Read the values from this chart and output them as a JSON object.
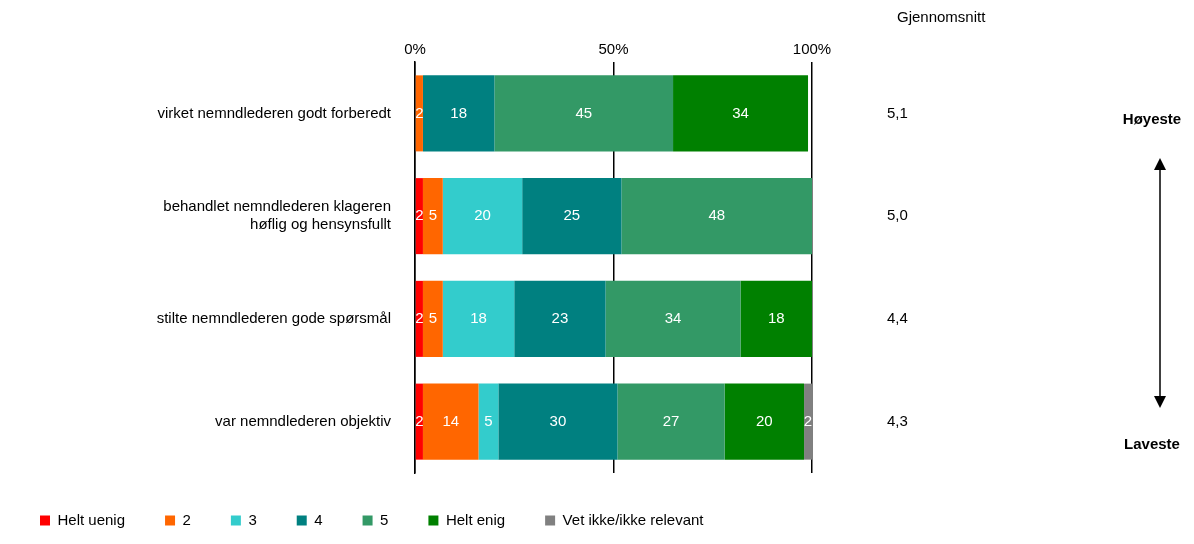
{
  "chart_data": {
    "type": "bar",
    "orientation": "horizontal",
    "stacked": true,
    "categories": [
      "virket nemndlederen godt forberedt",
      "behandlet nemndlederen klageren høflig og hensynsfullt",
      "stilte nemndlederen gode spørsmål",
      "var nemndlederen objektiv"
    ],
    "series": [
      {
        "name": "Helt uenig",
        "color": "#ff0000",
        "values": [
          null,
          2,
          2,
          2
        ]
      },
      {
        "name": "2",
        "color": "#ff6600",
        "values": [
          2,
          5,
          5,
          14
        ]
      },
      {
        "name": "3",
        "color": "#33cccc",
        "values": [
          null,
          20,
          18,
          5
        ]
      },
      {
        "name": "4",
        "color": "#008080",
        "values": [
          18,
          25,
          23,
          30
        ]
      },
      {
        "name": "5",
        "color": "#339966",
        "values": [
          45,
          48,
          34,
          27
        ]
      },
      {
        "name": "Helt enig",
        "color": "#008000",
        "values": [
          34,
          null,
          18,
          20
        ]
      },
      {
        "name": "Vet ikke/ikke relevant",
        "color": "#808080",
        "values": [
          null,
          null,
          null,
          2
        ]
      }
    ],
    "xlim": [
      0,
      100
    ],
    "xticks": [
      {
        "value": 0,
        "label": "0%"
      },
      {
        "value": 50,
        "label": "50%"
      },
      {
        "value": 100,
        "label": "100%"
      }
    ],
    "grid": "x",
    "legend": "bottom",
    "data_labels": true,
    "annotations": [
      "Gjennomsnitt",
      "5,1",
      "5,0",
      "4,4",
      "4,3",
      "Høyeste",
      "Laveste"
    ]
  }
}
